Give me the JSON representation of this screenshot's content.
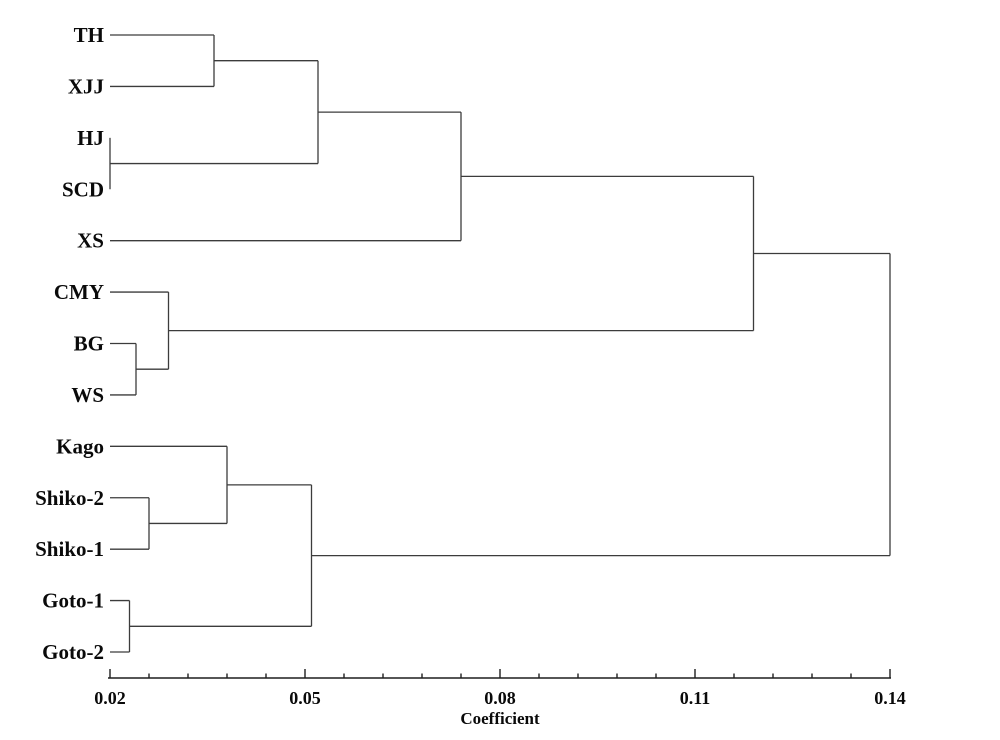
{
  "figure": {
    "background_color": "#ffffff",
    "line_color": "#3c3c3c",
    "axis_color": "#1f1f1f",
    "text_color": "#0a0a0a"
  },
  "chart_data": {
    "type": "dendrogram",
    "orientation": "horizontal-right",
    "title": "",
    "xlabel": "Coefficient",
    "x_axis": {
      "tick_values": [
        0.02,
        0.05,
        0.08,
        0.11,
        0.14
      ],
      "tick_labels": [
        "0.02",
        "0.05",
        "0.08",
        "0.11",
        "0.14"
      ],
      "range": [
        0.02,
        0.14
      ],
      "minor_ticks_per_interval": 4
    },
    "leaves": [
      "TH",
      "XJJ",
      "HJ",
      "SCD",
      "XS",
      "CMY",
      "BG",
      "WS",
      "Kago",
      "Shiko-2",
      "Shiko-1",
      "Goto-1",
      "Goto-2"
    ],
    "leaf_coefficient": 0.02,
    "tree": {
      "height": 0.14,
      "children": [
        {
          "height": 0.119,
          "children": [
            {
              "height": 0.074,
              "children": [
                {
                  "height": 0.052,
                  "children": [
                    {
                      "height": 0.036,
                      "children": [
                        {
                          "leaf": "TH"
                        },
                        {
                          "leaf": "XJJ"
                        }
                      ]
                    },
                    {
                      "height": 0.02,
                      "children": [
                        {
                          "leaf": "HJ"
                        },
                        {
                          "leaf": "SCD"
                        }
                      ]
                    }
                  ]
                },
                {
                  "leaf": "XS"
                }
              ]
            },
            {
              "height": 0.029,
              "children": [
                {
                  "leaf": "CMY"
                },
                {
                  "height": 0.024,
                  "children": [
                    {
                      "leaf": "BG"
                    },
                    {
                      "leaf": "WS"
                    }
                  ]
                }
              ]
            }
          ]
        },
        {
          "height": 0.051,
          "children": [
            {
              "height": 0.038,
              "children": [
                {
                  "leaf": "Kago"
                },
                {
                  "height": 0.026,
                  "children": [
                    {
                      "leaf": "Shiko-2"
                    },
                    {
                      "leaf": "Shiko-1"
                    }
                  ]
                }
              ]
            },
            {
              "height": 0.023,
              "children": [
                {
                  "leaf": "Goto-1"
                },
                {
                  "leaf": "Goto-2"
                }
              ]
            }
          ]
        }
      ]
    }
  }
}
